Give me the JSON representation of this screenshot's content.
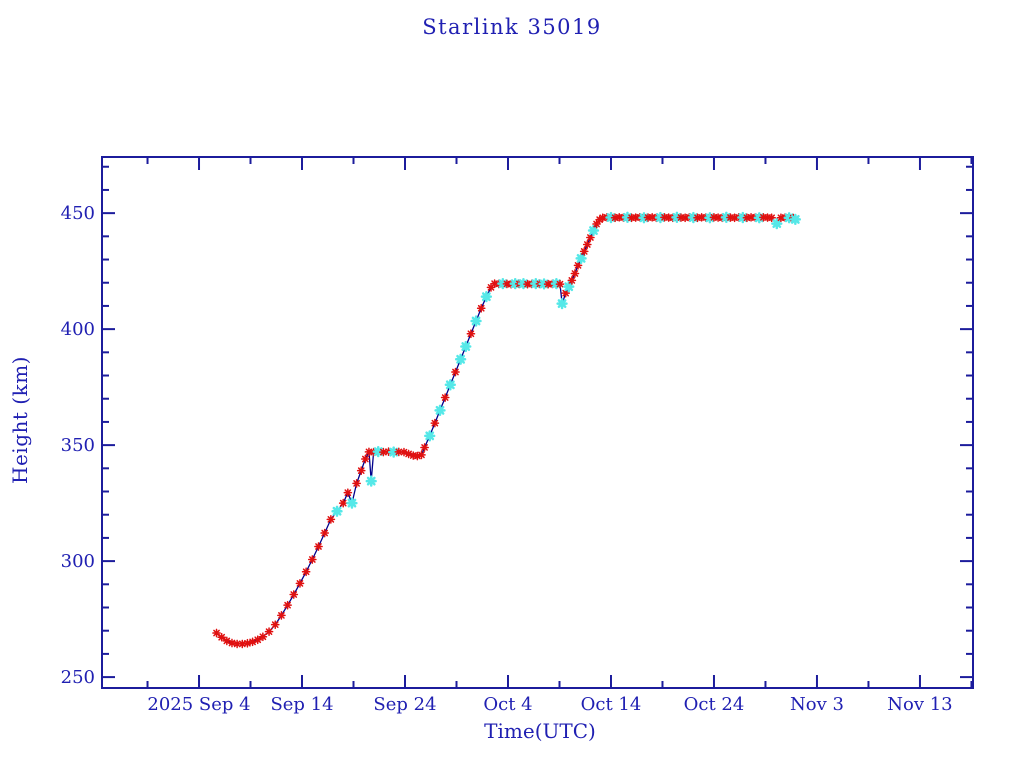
{
  "window": {
    "title": "Starlink 35019"
  },
  "colors": {
    "background": "#ffffff",
    "frame": "#1c1c9c",
    "text": "#2020b2",
    "line": "#00008b",
    "red_marker": "#e01111",
    "cyan_marker": "#55e8e8"
  },
  "chart_data": {
    "type": "line",
    "title": "Starlink 35019",
    "xlabel": "Time(UTC)",
    "ylabel": "Height (km)",
    "grid": "off",
    "legend": "none",
    "x_axis": {
      "unit": "days since 2025-09-04 00:00 UTC",
      "range_days": [
        -9.42,
        75.15
      ],
      "major_tick_days": [
        0,
        10,
        20,
        30,
        40,
        50,
        60,
        70
      ],
      "major_tick_labels": [
        "2025 Sep  4",
        "Sep 14",
        "Sep 24",
        "Oct  4",
        "Oct 14",
        "Oct 24",
        "Nov  3",
        "Nov 13"
      ],
      "minor_tick_step_days": 5
    },
    "y_axis": {
      "unit": "km",
      "range_km": [
        245.3,
        474.2
      ],
      "major_ticks": [
        250,
        300,
        350,
        400,
        450
      ],
      "major_tick_labels": [
        "250",
        "300",
        "350",
        "400",
        "450"
      ],
      "minor_tick_step": 10
    },
    "marker_legend": {
      "r": "red asterisk data point",
      "c": "cyan asterisk data point"
    },
    "series": [
      {
        "name": "height",
        "line_color_key": "line",
        "points": [
          [
            1.7,
            269.0,
            "r"
          ],
          [
            2.2,
            267.2,
            "r"
          ],
          [
            2.7,
            265.6,
            "r"
          ],
          [
            3.2,
            264.7,
            "r"
          ],
          [
            3.7,
            264.3,
            "r"
          ],
          [
            4.2,
            264.3,
            "r"
          ],
          [
            4.7,
            264.6,
            "r"
          ],
          [
            5.2,
            265.2,
            "r"
          ],
          [
            5.7,
            266.1,
            "r"
          ],
          [
            6.2,
            267.4,
            "r"
          ],
          [
            6.8,
            269.6,
            "r"
          ],
          [
            7.4,
            272.6,
            "r"
          ],
          [
            8.0,
            276.6,
            "r"
          ],
          [
            8.6,
            281.0,
            "r"
          ],
          [
            9.2,
            285.6,
            "r"
          ],
          [
            9.8,
            290.4,
            "r"
          ],
          [
            10.4,
            295.4,
            "r"
          ],
          [
            11.0,
            300.7,
            "r"
          ],
          [
            11.6,
            306.3,
            "r"
          ],
          [
            12.2,
            312.1,
            "r"
          ],
          [
            12.8,
            318.0,
            "r"
          ],
          [
            13.4,
            321.5,
            "c"
          ],
          [
            14.0,
            325.0,
            "r"
          ],
          [
            14.45,
            329.5,
            "r"
          ],
          [
            14.85,
            325.0,
            "c"
          ],
          [
            15.3,
            333.5,
            "r"
          ],
          [
            15.75,
            339.0,
            "r"
          ],
          [
            16.15,
            344.0,
            "r"
          ],
          [
            16.5,
            347.1,
            "r"
          ],
          [
            16.72,
            334.5,
            "c"
          ],
          [
            16.95,
            347.0,
            "r"
          ],
          [
            17.4,
            347.2,
            "c"
          ],
          [
            17.9,
            347.0,
            "r"
          ],
          [
            18.4,
            347.2,
            "r"
          ],
          [
            18.9,
            347.0,
            "c"
          ],
          [
            19.4,
            347.1,
            "r"
          ],
          [
            19.9,
            347.0,
            "r"
          ],
          [
            20.35,
            346.2,
            "r"
          ],
          [
            20.8,
            345.5,
            "r"
          ],
          [
            21.2,
            345.3,
            "r"
          ],
          [
            21.6,
            345.8,
            "r"
          ],
          [
            21.9,
            349.0,
            "r"
          ],
          [
            22.4,
            354.0,
            "c"
          ],
          [
            22.9,
            359.5,
            "r"
          ],
          [
            23.4,
            365.0,
            "c"
          ],
          [
            23.9,
            370.5,
            "r"
          ],
          [
            24.4,
            376.0,
            "c"
          ],
          [
            24.9,
            381.5,
            "r"
          ],
          [
            25.4,
            387.0,
            "c"
          ],
          [
            25.9,
            392.5,
            "c"
          ],
          [
            26.4,
            398.0,
            "r"
          ],
          [
            26.9,
            403.5,
            "c"
          ],
          [
            27.4,
            409.0,
            "r"
          ],
          [
            27.9,
            414.0,
            "c"
          ],
          [
            28.35,
            418.0,
            "r"
          ],
          [
            28.7,
            419.6,
            "r"
          ],
          [
            29.1,
            419.5,
            "r"
          ],
          [
            29.5,
            419.6,
            "c"
          ],
          [
            29.9,
            419.5,
            "r"
          ],
          [
            30.3,
            419.4,
            "r"
          ],
          [
            30.7,
            419.6,
            "c"
          ],
          [
            31.1,
            419.5,
            "r"
          ],
          [
            31.5,
            419.6,
            "c"
          ],
          [
            31.9,
            419.4,
            "r"
          ],
          [
            32.3,
            419.5,
            "r"
          ],
          [
            32.7,
            419.6,
            "c"
          ],
          [
            33.1,
            419.5,
            "r"
          ],
          [
            33.5,
            419.5,
            "c"
          ],
          [
            33.9,
            419.4,
            "r"
          ],
          [
            34.3,
            419.5,
            "r"
          ],
          [
            34.7,
            419.6,
            "c"
          ],
          [
            35.05,
            419.4,
            "r"
          ],
          [
            35.25,
            411.0,
            "c"
          ],
          [
            35.6,
            415.5,
            "r"
          ],
          [
            35.9,
            418.3,
            "c"
          ],
          [
            36.2,
            421.0,
            "r"
          ],
          [
            36.5,
            424.0,
            "r"
          ],
          [
            36.8,
            427.5,
            "r"
          ],
          [
            37.1,
            430.5,
            "c"
          ],
          [
            37.4,
            433.5,
            "r"
          ],
          [
            37.7,
            436.5,
            "r"
          ],
          [
            38.0,
            439.5,
            "r"
          ],
          [
            38.3,
            442.5,
            "c"
          ],
          [
            38.6,
            445.3,
            "r"
          ],
          [
            38.9,
            447.2,
            "r"
          ],
          [
            39.2,
            448.0,
            "r"
          ],
          [
            39.6,
            448.2,
            "r"
          ],
          [
            40.0,
            448.1,
            "c"
          ],
          [
            40.4,
            448.0,
            "r"
          ],
          [
            40.8,
            448.2,
            "r"
          ],
          [
            41.2,
            448.1,
            "r"
          ],
          [
            41.6,
            448.2,
            "c"
          ],
          [
            42.0,
            448.0,
            "r"
          ],
          [
            42.4,
            448.1,
            "r"
          ],
          [
            42.8,
            448.2,
            "r"
          ],
          [
            43.2,
            448.0,
            "c"
          ],
          [
            43.6,
            448.1,
            "r"
          ],
          [
            44.0,
            448.2,
            "r"
          ],
          [
            44.4,
            448.0,
            "r"
          ],
          [
            44.8,
            448.1,
            "c"
          ],
          [
            45.2,
            448.2,
            "r"
          ],
          [
            45.6,
            448.1,
            "r"
          ],
          [
            46.0,
            448.0,
            "r"
          ],
          [
            46.4,
            448.2,
            "c"
          ],
          [
            46.8,
            448.1,
            "r"
          ],
          [
            47.2,
            448.0,
            "r"
          ],
          [
            47.6,
            448.2,
            "r"
          ],
          [
            48.0,
            448.1,
            "c"
          ],
          [
            48.4,
            448.0,
            "r"
          ],
          [
            48.8,
            448.2,
            "r"
          ],
          [
            49.2,
            448.1,
            "r"
          ],
          [
            49.6,
            448.0,
            "c"
          ],
          [
            50.0,
            448.2,
            "r"
          ],
          [
            50.4,
            448.1,
            "r"
          ],
          [
            50.8,
            448.0,
            "r"
          ],
          [
            51.2,
            448.2,
            "c"
          ],
          [
            51.6,
            448.1,
            "r"
          ],
          [
            52.0,
            448.0,
            "r"
          ],
          [
            52.4,
            448.2,
            "r"
          ],
          [
            52.8,
            448.1,
            "c"
          ],
          [
            53.2,
            448.0,
            "r"
          ],
          [
            53.6,
            448.2,
            "r"
          ],
          [
            54.0,
            448.1,
            "r"
          ],
          [
            54.4,
            448.0,
            "c"
          ],
          [
            54.8,
            448.2,
            "r"
          ],
          [
            55.2,
            448.1,
            "r"
          ],
          [
            55.6,
            448.0,
            "r"
          ],
          [
            56.1,
            445.5,
            "c"
          ],
          [
            56.5,
            448.0,
            "r"
          ],
          [
            56.9,
            448.1,
            "r"
          ],
          [
            57.3,
            448.0,
            "c"
          ],
          [
            57.7,
            447.9,
            "r"
          ],
          [
            57.9,
            447.3,
            "c"
          ]
        ]
      }
    ]
  }
}
